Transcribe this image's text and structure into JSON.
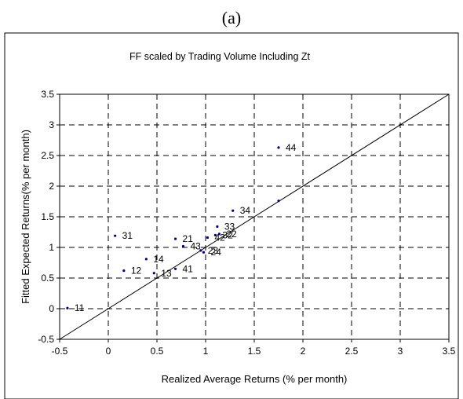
{
  "panel_label": "(a)",
  "chart_data": {
    "type": "scatter",
    "title": "FF  scaled by Trading Volume Including Zt",
    "xlabel": "Realized Average Returns (% per month)",
    "ylabel": "Fitted Expected Returns(% per month)",
    "xlim": [
      -0.5,
      3.5
    ],
    "ylim": [
      -0.5,
      3.5
    ],
    "x_ticks": [
      -0.5,
      0,
      0.5,
      1,
      1.5,
      2,
      2.5,
      3,
      3.5
    ],
    "y_ticks": [
      -0.5,
      0,
      0.5,
      1,
      1.5,
      2,
      2.5,
      3,
      3.5
    ],
    "x_tick_labels": [
      "-0.5",
      "0",
      "0.5",
      "1",
      "1.5",
      "2",
      "2.5",
      "3",
      "3.5"
    ],
    "y_tick_labels": [
      "-0.5",
      "0",
      "0.5",
      "1",
      "1.5",
      "2",
      "2.5",
      "3",
      "3.5"
    ],
    "grid": true,
    "reference_line": [
      [
        -0.5,
        -0.5
      ],
      [
        3.5,
        3.5
      ]
    ],
    "point_color": "#000080",
    "points": [
      {
        "label": "11",
        "x": -0.42,
        "y": 0.01
      },
      {
        "label": "12",
        "x": 0.16,
        "y": 0.62
      },
      {
        "label": "13",
        "x": 0.47,
        "y": 0.58
      },
      {
        "label": "14",
        "x": 0.39,
        "y": 0.81
      },
      {
        "label": "21",
        "x": 0.69,
        "y": 1.14
      },
      {
        "label": "22",
        "x": 1.14,
        "y": 1.22
      },
      {
        "label": "23",
        "x": 0.95,
        "y": 0.95
      },
      {
        "label": "24",
        "x": 0.98,
        "y": 0.92
      },
      {
        "label": "31",
        "x": 0.07,
        "y": 1.19
      },
      {
        "label": "32",
        "x": 1.1,
        "y": 1.2
      },
      {
        "label": "33",
        "x": 1.12,
        "y": 1.34
      },
      {
        "label": "34",
        "x": 1.28,
        "y": 1.6
      },
      {
        "label": "41",
        "x": 0.69,
        "y": 0.65
      },
      {
        "label": "42",
        "x": 1.02,
        "y": 1.16
      },
      {
        "label": "43",
        "x": 0.77,
        "y": 1.02
      },
      {
        "label": "44",
        "x": 1.75,
        "y": 2.63
      },
      {
        "label": "",
        "x": 1.75,
        "y": 1.76
      }
    ]
  }
}
